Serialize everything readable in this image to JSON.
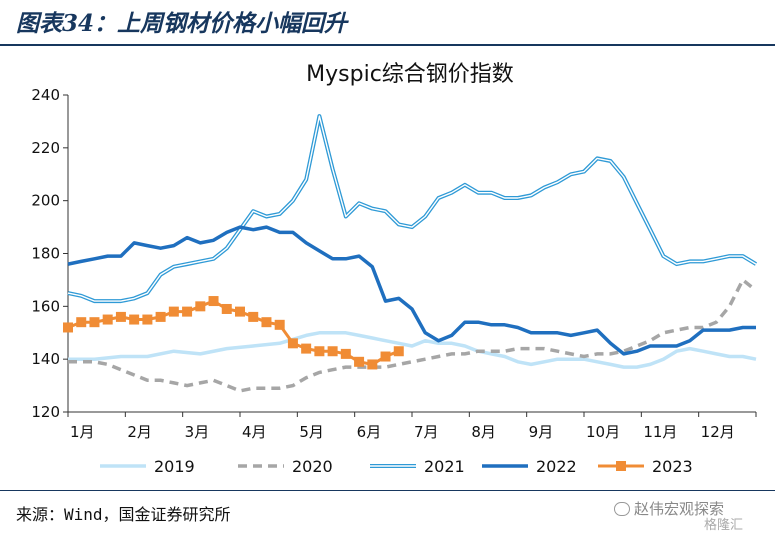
{
  "figure_title": "图表34：上周钢材价格小幅回升",
  "source_note": "来源：Wind，国金证券研究所",
  "watermark": {
    "icon": "wechat-icon",
    "text": "赵伟宏观探索",
    "text2": "格隆汇"
  },
  "colors": {
    "2019": "#bfe3f7",
    "2020": "#a6a6a6",
    "2021": "#2f9ad6",
    "2022": "#1f6fbf",
    "2023": "#f08c35"
  },
  "chart_data": {
    "type": "line",
    "title": "Myspic综合钢价指数",
    "xlabel": "",
    "ylabel": "",
    "x_ticks": [
      "1月",
      "2月",
      "3月",
      "4月",
      "5月",
      "6月",
      "7月",
      "8月",
      "9月",
      "10月",
      "11月",
      "12月"
    ],
    "x_unit": "week of year",
    "xlim": [
      1,
      53
    ],
    "ylim": [
      120,
      240
    ],
    "y_ticks": [
      120,
      140,
      160,
      180,
      200,
      220,
      240
    ],
    "grid": false,
    "legend_position": "bottom",
    "series": [
      {
        "name": "2019",
        "style": "thick-solid",
        "x": [
          1,
          3,
          5,
          7,
          9,
          11,
          13,
          15,
          17,
          19,
          20,
          21,
          22,
          23,
          24,
          25,
          26,
          27,
          28,
          29,
          30,
          31,
          32,
          33,
          34,
          35,
          36,
          37,
          38,
          39,
          40,
          41,
          42,
          43,
          44,
          45,
          46,
          47,
          48,
          49,
          50,
          51,
          52,
          53
        ],
        "y": [
          140,
          140,
          141,
          141,
          143,
          142,
          144,
          145,
          146,
          149,
          150,
          150,
          150,
          149,
          148,
          147,
          146,
          145,
          147,
          146,
          146,
          145,
          143,
          142,
          141,
          139,
          138,
          139,
          140,
          140,
          140,
          139,
          138,
          137,
          137,
          138,
          140,
          143,
          144,
          143,
          142,
          141,
          141,
          140
        ]
      },
      {
        "name": "2020",
        "style": "dashed",
        "x": [
          1,
          2,
          3,
          4,
          5,
          6,
          7,
          8,
          9,
          10,
          11,
          12,
          13,
          14,
          15,
          16,
          17,
          18,
          19,
          20,
          21,
          22,
          23,
          24,
          25,
          26,
          27,
          28,
          29,
          30,
          31,
          32,
          33,
          34,
          35,
          36,
          37,
          38,
          39,
          40,
          41,
          42,
          43,
          44,
          45,
          46,
          47,
          48,
          49,
          50,
          51,
          52,
          53
        ],
        "y": [
          139,
          139,
          139,
          138,
          136,
          134,
          132,
          132,
          131,
          130,
          131,
          132,
          130,
          128,
          129,
          129,
          129,
          130,
          133,
          135,
          136,
          137,
          137,
          137,
          137,
          138,
          139,
          140,
          141,
          142,
          142,
          143,
          143,
          143,
          144,
          144,
          144,
          143,
          142,
          141,
          142,
          142,
          143,
          145,
          147,
          150,
          151,
          152,
          152,
          154,
          160,
          170,
          166
        ]
      },
      {
        "name": "2021",
        "style": "double",
        "x": [
          1,
          2,
          3,
          4,
          5,
          6,
          7,
          8,
          9,
          10,
          11,
          12,
          13,
          14,
          15,
          16,
          17,
          18,
          19,
          20,
          21,
          22,
          23,
          24,
          25,
          26,
          27,
          28,
          29,
          30,
          31,
          32,
          33,
          34,
          35,
          36,
          37,
          38,
          39,
          40,
          41,
          42,
          43,
          44,
          45,
          46,
          47,
          48,
          49,
          50,
          51,
          52,
          53
        ],
        "y": [
          165,
          164,
          162,
          162,
          162,
          163,
          165,
          172,
          175,
          176,
          177,
          178,
          182,
          189,
          196,
          194,
          195,
          200,
          208,
          232,
          212,
          194,
          199,
          197,
          196,
          191,
          190,
          194,
          201,
          203,
          206,
          203,
          203,
          201,
          201,
          202,
          205,
          207,
          210,
          211,
          216,
          215,
          209,
          199,
          189,
          179,
          176,
          177,
          177,
          178,
          179,
          179,
          176
        ]
      },
      {
        "name": "2022",
        "style": "thick-solid",
        "x": [
          1,
          2,
          3,
          4,
          5,
          6,
          7,
          8,
          9,
          10,
          11,
          12,
          13,
          14,
          15,
          16,
          17,
          18,
          19,
          20,
          21,
          22,
          23,
          24,
          25,
          26,
          27,
          28,
          29,
          30,
          31,
          32,
          33,
          34,
          35,
          36,
          37,
          38,
          39,
          40,
          41,
          42,
          43,
          44,
          45,
          46,
          47,
          48,
          49,
          50,
          51,
          52,
          53
        ],
        "y": [
          176,
          177,
          178,
          179,
          179,
          184,
          183,
          182,
          183,
          186,
          184,
          185,
          188,
          190,
          189,
          190,
          188,
          188,
          184,
          181,
          178,
          178,
          179,
          175,
          162,
          163,
          159,
          150,
          147,
          149,
          154,
          154,
          153,
          153,
          152,
          150,
          150,
          150,
          149,
          150,
          151,
          146,
          142,
          143,
          145,
          145,
          145,
          147,
          151,
          151,
          151,
          152,
          152
        ]
      },
      {
        "name": "2023",
        "style": "square-markers",
        "x": [
          1,
          2,
          3,
          4,
          5,
          6,
          7,
          8,
          9,
          10,
          11,
          12,
          13,
          14,
          15,
          16,
          17,
          18,
          19,
          20,
          21,
          22,
          23,
          24,
          25,
          26
        ],
        "y": [
          152,
          154,
          154,
          155,
          156,
          155,
          155,
          156,
          158,
          158,
          160,
          162,
          159,
          158,
          156,
          154,
          153,
          146,
          144,
          143,
          143,
          142,
          139,
          138,
          141,
          143
        ]
      }
    ]
  }
}
